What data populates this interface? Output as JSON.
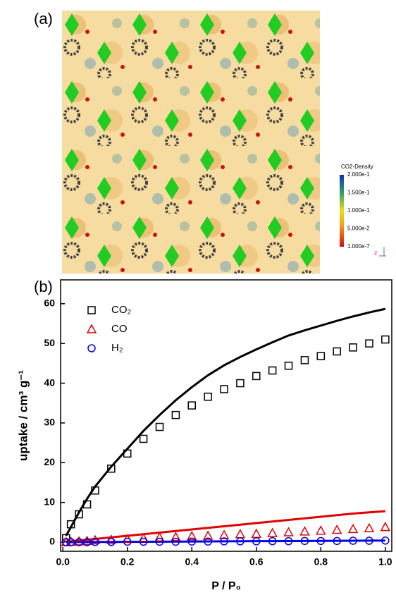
{
  "panel_a": {
    "label": "(a)",
    "colorbar_title": "CO2-Density",
    "colorbar_labels": [
      "2.000e-1",
      "1.500e-1",
      "1.000e-1",
      "5.000e-2",
      "1.000e-7"
    ],
    "axis_label": "z"
  },
  "chart_data": {
    "type": "scatter",
    "panel_label": "(b)",
    "x_label": "P / P₀",
    "y_label": "uptake / cm³ g⁻¹",
    "xlim": [
      -0.007,
      1.02
    ],
    "ylim": [
      -2.3,
      66
    ],
    "xticks": [
      {
        "value": 0,
        "label": "0.0"
      },
      {
        "value": 0.2,
        "label": "0.2"
      },
      {
        "value": 0.4,
        "label": "0.4"
      },
      {
        "value": 0.6,
        "label": "0.6"
      },
      {
        "value": 0.8,
        "label": "0.8"
      },
      {
        "value": 1,
        "label": "1.0"
      }
    ],
    "yticks": [
      0,
      10,
      20,
      30,
      40,
      50,
      60
    ],
    "legend": "upper left",
    "x": [
      0.01,
      0.025,
      0.05,
      0.075,
      0.1,
      0.15,
      0.2,
      0.25,
      0.3,
      0.35,
      0.4,
      0.45,
      0.5,
      0.55,
      0.6,
      0.65,
      0.7,
      0.75,
      0.8,
      0.85,
      0.9,
      0.95,
      1.0
    ],
    "series": [
      {
        "name": "CO₂",
        "color": "#000000",
        "marker": "square",
        "values": [
          1,
          4.5,
          7,
          9.5,
          13,
          18.5,
          22.3,
          26,
          29,
          32,
          34.4,
          36.6,
          38.5,
          40,
          41.8,
          43.2,
          44.4,
          45.8,
          46.8,
          48,
          49,
          50,
          51
        ]
      },
      {
        "name": "CO",
        "color": "#e00000",
        "marker": "triangle",
        "values": [
          0,
          0.1,
          0.2,
          0.3,
          0.5,
          0.6,
          0.8,
          1,
          1.2,
          1.3,
          1.5,
          1.6,
          1.8,
          2,
          2.1,
          2.3,
          2.5,
          2.7,
          2.9,
          3.1,
          3.3,
          3.5,
          3.8
        ]
      },
      {
        "name": "H₂",
        "color": "#0000e0",
        "marker": "circle",
        "values": [
          0,
          0,
          0,
          0,
          0.05,
          0.05,
          0.1,
          0.1,
          0.1,
          0.1,
          0.15,
          0.15,
          0.2,
          0.2,
          0.2,
          0.25,
          0.25,
          0.3,
          0.3,
          0.3,
          0.35,
          0.35,
          0.4
        ]
      }
    ],
    "fit_lines": [
      {
        "color": "#000000",
        "values": [
          1.6,
          3.8,
          7.5,
          10.9,
          14,
          19,
          23.5,
          28,
          32,
          35.7,
          39,
          42,
          44.5,
          46.6,
          48.5,
          50.3,
          52,
          53.3,
          54.5,
          55.7,
          56.8,
          57.8,
          58.7
        ]
      },
      {
        "color": "#e00000",
        "values": [
          0.08,
          0.2,
          0.4,
          0.6,
          0.8,
          1.2,
          1.6,
          2.0,
          2.4,
          2.8,
          3.2,
          3.6,
          4.0,
          4.4,
          4.8,
          5.2,
          5.6,
          6.0,
          6.4,
          6.8,
          7.2,
          7.5,
          7.8
        ]
      },
      {
        "color": "#0000e0",
        "values": [
          0,
          0.01,
          0.02,
          0.03,
          0.04,
          0.06,
          0.08,
          0.1,
          0.12,
          0.14,
          0.16,
          0.18,
          0.2,
          0.22,
          0.24,
          0.26,
          0.28,
          0.3,
          0.32,
          0.34,
          0.36,
          0.38,
          0.4
        ]
      }
    ]
  }
}
